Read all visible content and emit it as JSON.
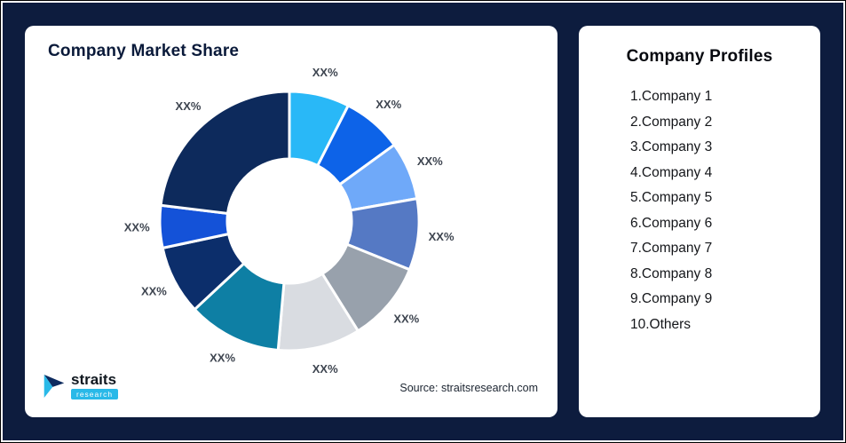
{
  "page": {
    "background_color": "#0d1c3e"
  },
  "market_share_card": {
    "title": "Company Market Share",
    "source_text": "Source: straitsresearch.com",
    "logo": {
      "brand": "straits",
      "sub_brand": "research",
      "accent_color": "#29b9e8",
      "dark_color": "#0d2a5e"
    }
  },
  "profiles_card": {
    "title": "Company Profiles",
    "items": [
      "1.Company 1",
      "2.Company 2",
      "3.Company 3",
      "4.Company 4",
      "5.Company 5",
      "6.Company 6",
      "7.Company 7",
      "8.Company 8",
      "9.Company 9",
      "10.Others"
    ]
  },
  "chart_data": {
    "type": "pie",
    "variant": "donut",
    "title": "Company Market Share",
    "value_labels_shown": "XX% on every slice",
    "legend_position": "none",
    "inner_radius_ratio": 0.48,
    "start_angle_deg": 0,
    "direction": "clockwise",
    "segments": [
      {
        "label": "XX%",
        "angle_deg": 27,
        "color": "#29b8f7"
      },
      {
        "label": "XX%",
        "angle_deg": 27,
        "color": "#0d63e8"
      },
      {
        "label": "XX%",
        "angle_deg": 26,
        "color": "#6fa9f9"
      },
      {
        "label": "XX%",
        "angle_deg": 32,
        "color": "#5579c4"
      },
      {
        "label": "XX%",
        "angle_deg": 36,
        "color": "#98a1ac"
      },
      {
        "label": "XX%",
        "angle_deg": 37,
        "color": "#d9dce1"
      },
      {
        "label": "XX%",
        "angle_deg": 42,
        "color": "#0e7fa4"
      },
      {
        "label": "XX%",
        "angle_deg": 31,
        "color": "#0c2e6b"
      },
      {
        "label": "XX%",
        "angle_deg": 19,
        "color": "#1452d8"
      },
      {
        "label": "XX%",
        "angle_deg": 83,
        "color": "#0d2a5c"
      }
    ]
  }
}
